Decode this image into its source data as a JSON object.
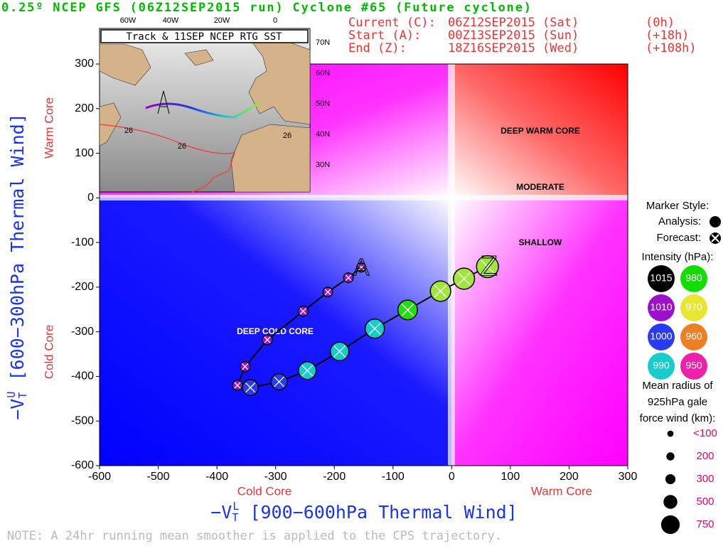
{
  "chart_data": {
    "type": "scatter",
    "title": "0.25º NCEP GFS (06Z12SEP2015 run) Cyclone #65 (Future cyclone)",
    "info": [
      [
        "Current (C):",
        "06Z12SEP2015 (Sat)",
        "(0h)"
      ],
      [
        "Start (A):",
        "00Z13SEP2015 (Sun)",
        "(+18h)"
      ],
      [
        "End (Z):",
        "18Z16SEP2015 (Wed)",
        "(+108h)"
      ]
    ],
    "x_label": {
      "sign": "−V",
      "sub": "T",
      "sup": "L",
      "rest": " [900−600hPa Thermal Wind]"
    },
    "y_label": {
      "sign": "−V",
      "sub": "T",
      "sup": "U",
      "rest": " [600−300hPa Thermal Wind]"
    },
    "x_side_labels": [
      "Cold Core",
      "Warm Core"
    ],
    "y_side_labels": [
      "Warm Core",
      "Cold Core"
    ],
    "regions": [
      "DEEP WARM CORE",
      "MODERATE",
      "SHALLOW",
      "DEEP COLD CORE"
    ],
    "start_marker": "A",
    "end_marker": "Z",
    "note": "NOTE:  A 24hr running mean smoother is applied to the CPS trajectory.",
    "xlim": [
      -600,
      300
    ],
    "ylim": [
      -600,
      300
    ],
    "xticks": [
      -600,
      -500,
      -400,
      -300,
      -200,
      -100,
      0,
      100,
      200,
      300
    ],
    "yticks": [
      -600,
      -500,
      -400,
      -300,
      -200,
      -100,
      0,
      100,
      200,
      300
    ],
    "series": [
      {
        "x": [
          -154,
          -176,
          -211,
          -253,
          -314,
          -352,
          -365,
          -343,
          -294,
          -246,
          -191,
          -131,
          -75,
          -19,
          21,
          61
        ],
        "y": [
          -156,
          -179,
          -211,
          -254,
          -318,
          -378,
          -420,
          -425,
          -412,
          -387,
          -344,
          -293,
          -251,
          -209,
          -181,
          -154
        ],
        "sizes": [
          250,
          280,
          280,
          300,
          300,
          300,
          300,
          600,
          620,
          700,
          740,
          780,
          800,
          840,
          880,
          920
        ],
        "colors": [
          "#9b10cc",
          "#9b10cc",
          "#9b10cc",
          "#9b10cc",
          "#9b10cc",
          "#9b10cc",
          "#9b10cc",
          "#2a3cf0",
          "#2a3cf0",
          "#18cccc",
          "#18cccc",
          "#18cccc",
          "#22dd11",
          "#a0e63c",
          "#a0e63c",
          "#a0e63c"
        ]
      }
    ],
    "legend": {
      "marker_title": "Marker Style:",
      "analysis": "Analysis:",
      "forecast": "Forecast:",
      "intensity_title": "Intensity (hPa):",
      "intensity": [
        {
          "value": 1015,
          "color": "#000000"
        },
        {
          "value": 980,
          "color": "#11dd00"
        },
        {
          "value": 1010,
          "color": "#9b10cc"
        },
        {
          "value": 970,
          "color": "#e6e633"
        },
        {
          "value": 1000,
          "color": "#2a3cf0"
        },
        {
          "value": 960,
          "color": "#ee7f22"
        },
        {
          "value": 990,
          "color": "#18cccc"
        },
        {
          "value": 950,
          "color": "#ee22aa"
        }
      ],
      "size_title": [
        "Mean radius of",
        "925hPa gale",
        "force wind (km):"
      ],
      "sizes": [
        {
          "value": 100,
          "label": "<100"
        },
        200,
        300,
        500,
        750
      ]
    },
    "inset": {
      "title": "Track & 11SEP NCEP RTG SST",
      "lon_labels": [
        "60W",
        "40W",
        "20W",
        "0"
      ],
      "lat_labels": [
        "70N",
        "60N",
        "50N",
        "40N",
        "30N"
      ],
      "contour_labels": [
        "26",
        "26",
        "26"
      ]
    }
  }
}
